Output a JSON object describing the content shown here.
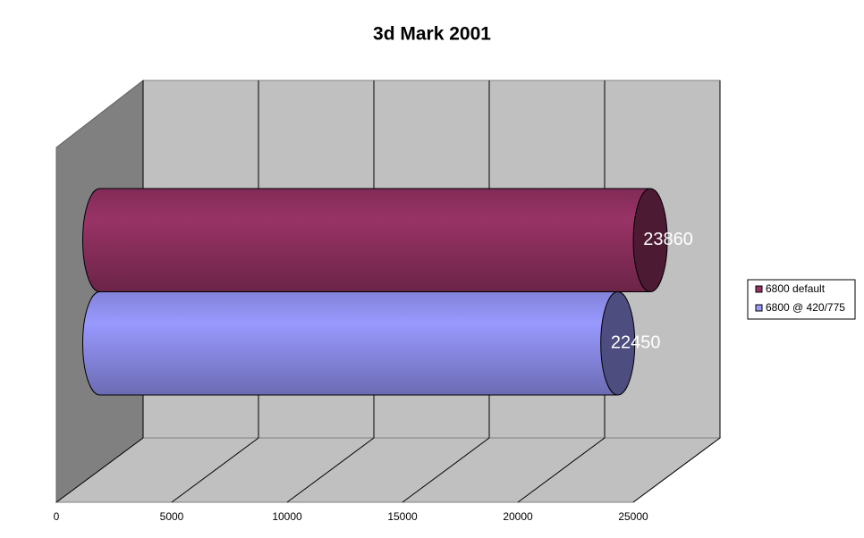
{
  "chart_data": {
    "type": "bar",
    "orientation": "horizontal",
    "style": "3d-cylinder",
    "title": "3d Mark 2001",
    "categories": [
      null
    ],
    "series": [
      {
        "name": "6800 default",
        "color": "#993366",
        "values": [
          23860
        ]
      },
      {
        "name": "6800 @ 420/775",
        "color": "#9999ff",
        "values": [
          22450
        ]
      }
    ],
    "xlim": [
      0,
      25000
    ],
    "xticks": [
      0,
      5000,
      10000,
      15000,
      20000,
      25000
    ],
    "grid": true,
    "legend": "right"
  }
}
